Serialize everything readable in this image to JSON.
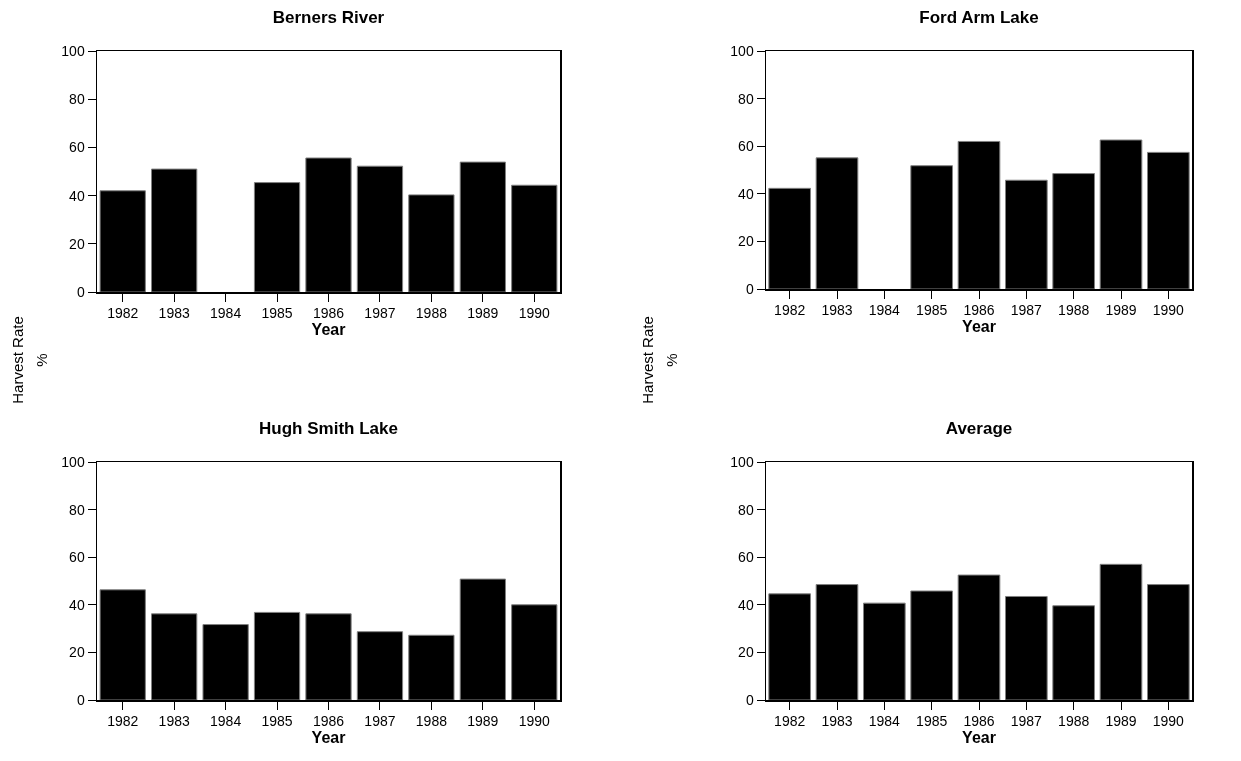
{
  "chart_data": [
    {
      "type": "bar",
      "title": "Berners River",
      "xlabel": "Year",
      "ylabel": "Harvest Rate\n%",
      "categories": [
        "1982",
        "1983",
        "1984",
        "1985",
        "1986",
        "1987",
        "1988",
        "1989",
        "1990"
      ],
      "values": [
        42,
        51,
        null,
        45.4,
        55.6,
        52.2,
        40.3,
        53.9,
        44.3
      ],
      "color": "#000000",
      "ylim": [
        0,
        100
      ],
      "yticks": [
        0,
        20,
        40,
        60,
        80,
        100
      ]
    },
    {
      "type": "bar",
      "title": "Ford Arm Lake",
      "xlabel": "Year",
      "ylabel": "Harvest Rate\n%",
      "categories": [
        "1982",
        "1983",
        "1984",
        "1985",
        "1986",
        "1987",
        "1988",
        "1989",
        "1990"
      ],
      "values": [
        42.3,
        55.1,
        null,
        51.8,
        62,
        45.7,
        48.5,
        62.6,
        57.4
      ],
      "color": "#000000",
      "ylim": [
        0,
        100
      ],
      "yticks": [
        0,
        20,
        40,
        60,
        80,
        100
      ]
    },
    {
      "type": "bar",
      "title": "Hugh Smith Lake",
      "xlabel": "Year",
      "categories": [
        "1982",
        "1983",
        "1984",
        "1985",
        "1986",
        "1987",
        "1988",
        "1989",
        "1990"
      ],
      "values": [
        46.3,
        36.2,
        31.7,
        36.8,
        36.2,
        28.7,
        27.2,
        50.8,
        40
      ],
      "color": "#000000",
      "ylim": [
        0,
        100
      ],
      "yticks": [
        0,
        20,
        40,
        60,
        80,
        100
      ]
    },
    {
      "type": "bar",
      "title": "Average",
      "xlabel": "Year",
      "categories": [
        "1982",
        "1983",
        "1984",
        "1985",
        "1986",
        "1987",
        "1988",
        "1989",
        "1990"
      ],
      "values": [
        44.6,
        48.5,
        40.7,
        45.8,
        52.5,
        43.5,
        39.6,
        57,
        48.5
      ],
      "color": "#000000",
      "ylim": [
        0,
        100
      ],
      "yticks": [
        0,
        20,
        40,
        60,
        80,
        100
      ]
    }
  ]
}
